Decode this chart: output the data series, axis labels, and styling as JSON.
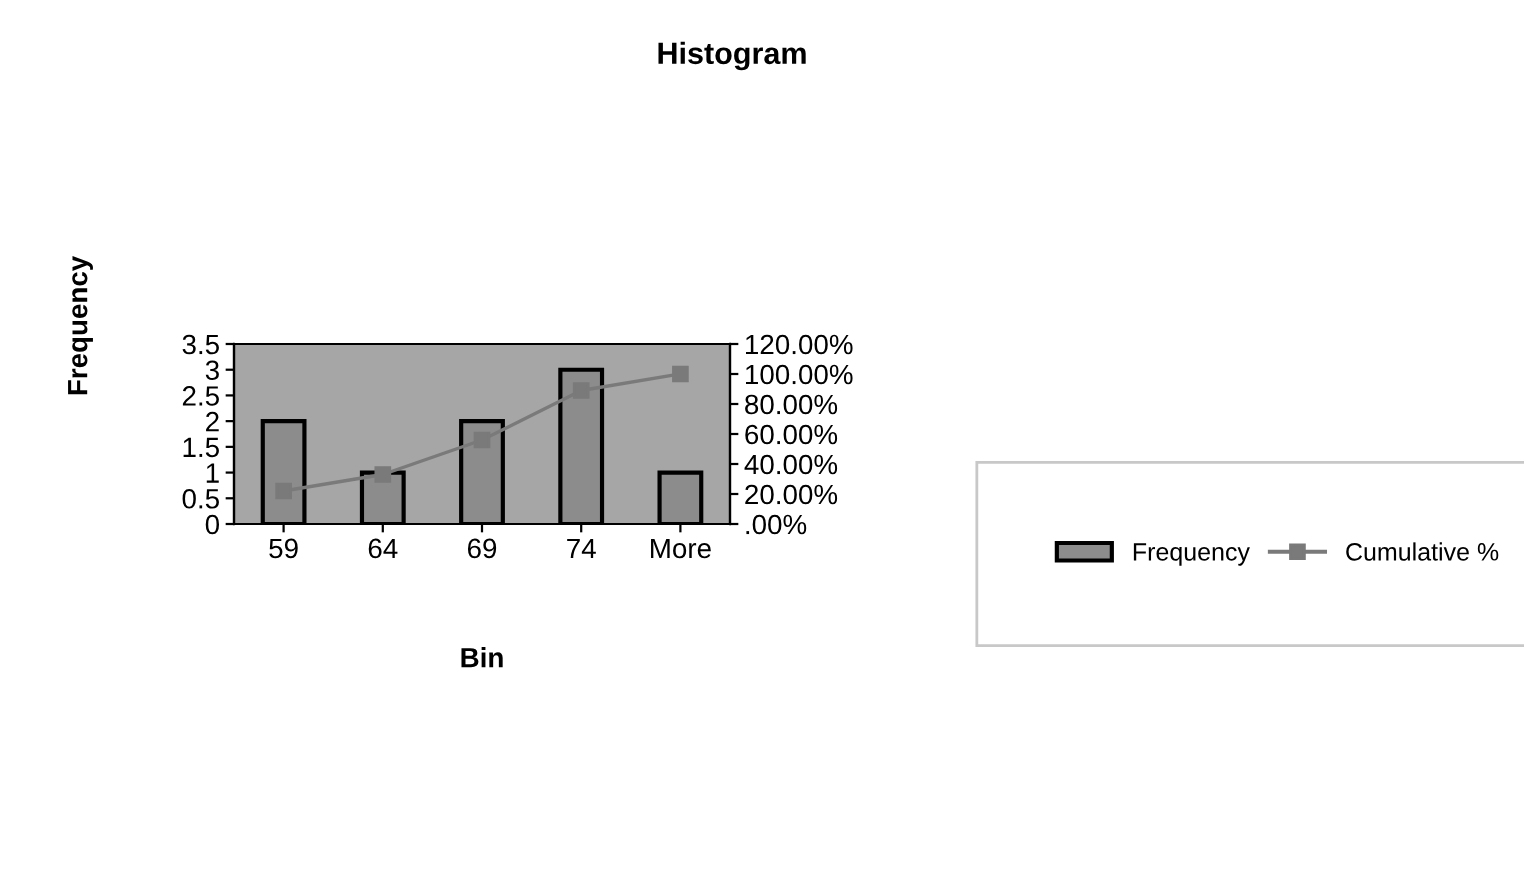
{
  "chart_data": {
    "type": "bar",
    "title": "Histogram",
    "xlabel": "Bin",
    "ylabel": "Frequency",
    "categories": [
      "59",
      "64",
      "69",
      "74",
      "More"
    ],
    "series": [
      {
        "name": "Frequency",
        "color": "#8c8c8c",
        "values": [
          2,
          1,
          2,
          3,
          1
        ]
      },
      {
        "name": "Cumulative %",
        "type": "line",
        "axis": "y2",
        "color": "#7a7a7a",
        "marker": "square",
        "values": [
          22,
          33,
          56,
          89,
          100
        ]
      }
    ],
    "ylim": [
      0,
      3.5
    ],
    "yticks": [
      0,
      0.5,
      1,
      1.5,
      2,
      2.5,
      3,
      3.5
    ],
    "y2lim": [
      0,
      120
    ],
    "y2ticks": [
      {
        "value": 0,
        "label": ".00%"
      },
      {
        "value": 20,
        "label": "20.00%"
      },
      {
        "value": 40,
        "label": "40.00%"
      },
      {
        "value": 60,
        "label": "60.00%"
      },
      {
        "value": 80,
        "label": "80.00%"
      },
      {
        "value": 100,
        "label": "100.00%"
      },
      {
        "value": 120,
        "label": "120.00%"
      }
    ],
    "grid": false,
    "legend": "right"
  }
}
